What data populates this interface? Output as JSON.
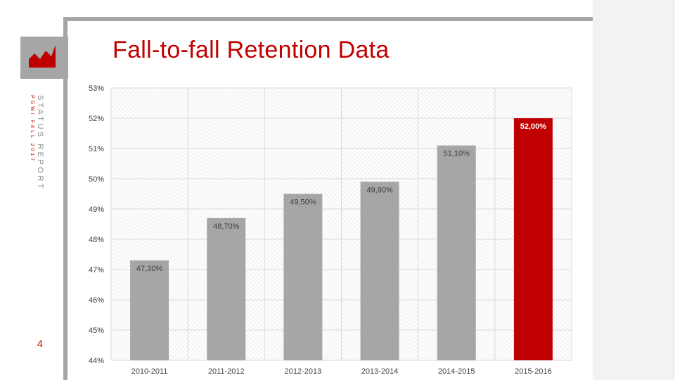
{
  "slide": {
    "title": "Fall-to-fall Retention Data",
    "side_title": "STATUS REPORT",
    "side_subtitle": "PGWI FALL 2017",
    "page_number": "4"
  },
  "colors": {
    "accent": "#c00000",
    "bar_default": "#a6a6a6",
    "bar_highlight": "#c00000",
    "frame_gray": "#a6a6a6"
  },
  "chart_data": {
    "type": "bar",
    "categories": [
      "2010-2011",
      "2011-2012",
      "2012-2013",
      "2013-2014",
      "2014-2015",
      "2015-2016"
    ],
    "values": [
      47.3,
      48.7,
      49.5,
      49.9,
      51.1,
      52.0
    ],
    "data_labels": [
      "47,30%",
      "48,70%",
      "49,50%",
      "49,90%",
      "51,10%",
      "52,00%"
    ],
    "highlight_index": 5,
    "ylim": [
      44,
      53
    ],
    "yticks": [
      44,
      45,
      46,
      47,
      48,
      49,
      50,
      51,
      52,
      53
    ],
    "ytick_labels": [
      "44%",
      "45%",
      "46%",
      "47%",
      "48%",
      "49%",
      "50%",
      "51%",
      "52%",
      "53%"
    ],
    "title": "",
    "xlabel": "",
    "ylabel": "",
    "grid": true,
    "legend": "none"
  }
}
